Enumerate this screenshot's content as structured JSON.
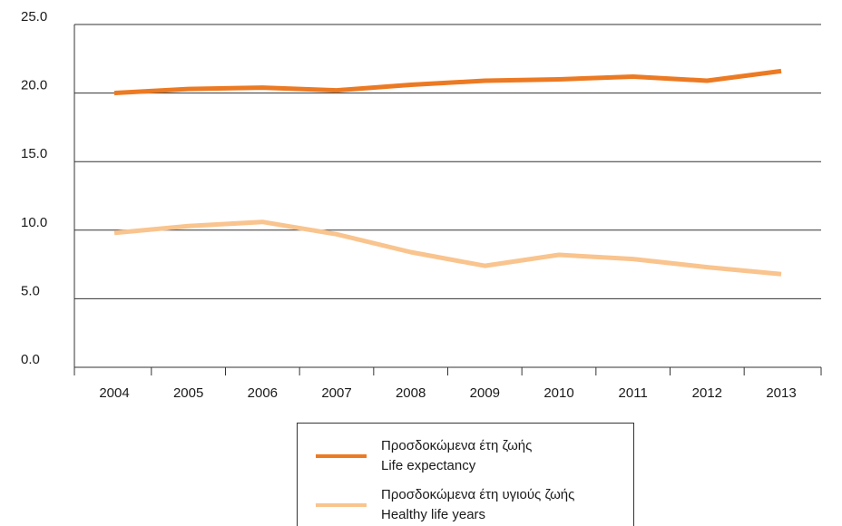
{
  "chart_data": {
    "type": "line",
    "categories": [
      "2004",
      "2005",
      "2006",
      "2007",
      "2008",
      "2009",
      "2010",
      "2011",
      "2012",
      "2013"
    ],
    "ylim": [
      0,
      25
    ],
    "yticks": [
      "0.0",
      "5.0",
      "10.0",
      "15.0",
      "20.0",
      "25.0"
    ],
    "grid": "horizontal",
    "legend_position": "bottom-center",
    "series": [
      {
        "name_greek": "Προσδοκώμενα έτη ζωής",
        "name": "Life expectancy",
        "color": "#ec7a23",
        "values": [
          20.0,
          20.3,
          20.4,
          20.2,
          20.6,
          20.9,
          21.0,
          21.2,
          20.9,
          21.6
        ]
      },
      {
        "name_greek": "Προσδοκώμενα έτη υγιούς ζωής",
        "name": "Healthy life years",
        "color": "#f9c48e",
        "values": [
          9.8,
          10.3,
          10.6,
          9.7,
          8.4,
          7.4,
          8.2,
          7.9,
          7.3,
          6.8
        ]
      }
    ]
  }
}
